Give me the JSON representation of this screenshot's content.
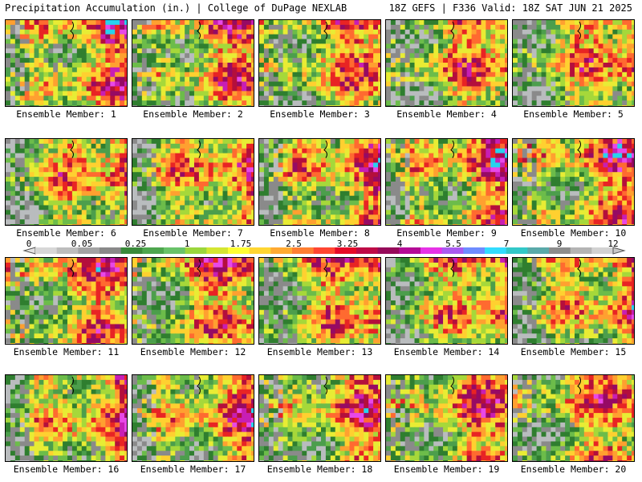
{
  "header": {
    "left": "Precipitation Accumulation (in.) | College of DuPage NEXLAB",
    "right": "18Z GEFS | F336 Valid: 18Z SAT JUN 21 2025"
  },
  "panels": [
    {
      "label": "Ensemble Member: 1"
    },
    {
      "label": "Ensemble Member: 2"
    },
    {
      "label": "Ensemble Member: 3"
    },
    {
      "label": "Ensemble Member: 4"
    },
    {
      "label": "Ensemble Member: 5"
    },
    {
      "label": "Ensemble Member: 6"
    },
    {
      "label": "Ensemble Member: 7"
    },
    {
      "label": "Ensemble Member: 8"
    },
    {
      "label": "Ensemble Member: 9"
    },
    {
      "label": "Ensemble Member: 10"
    },
    {
      "label": "Ensemble Member: 11"
    },
    {
      "label": "Ensemble Member: 12"
    },
    {
      "label": "Ensemble Member: 13"
    },
    {
      "label": "Ensemble Member: 14"
    },
    {
      "label": "Ensemble Member: 15"
    },
    {
      "label": "Ensemble Member: 16"
    },
    {
      "label": "Ensemble Member: 17"
    },
    {
      "label": "Ensemble Member: 18"
    },
    {
      "label": "Ensemble Member: 19"
    },
    {
      "label": "Ensemble Member: 20"
    }
  ],
  "colorbar": {
    "tick_labels": [
      "0",
      "0.05",
      "0.25",
      "1",
      "1.75",
      "2.5",
      "3.25",
      "4",
      "5.5",
      "7",
      "9",
      "12"
    ],
    "colors": [
      "#d7d7d7",
      "#bdbdbd",
      "#a3a3a3",
      "#898989",
      "#3a8a3a",
      "#4ea64e",
      "#69c269",
      "#9bd63c",
      "#d4e632",
      "#ffff32",
      "#ffd632",
      "#ffaa32",
      "#ff7f32",
      "#ff4632",
      "#e60a28",
      "#be0a46",
      "#960a5a",
      "#b40a96",
      "#e632e6",
      "#aa5af0",
      "#6e8cff",
      "#32dcff",
      "#32c8c8",
      "#5aaaaa",
      "#8c8c8c",
      "#b4b4b4",
      "#d2d2d2"
    ]
  }
}
